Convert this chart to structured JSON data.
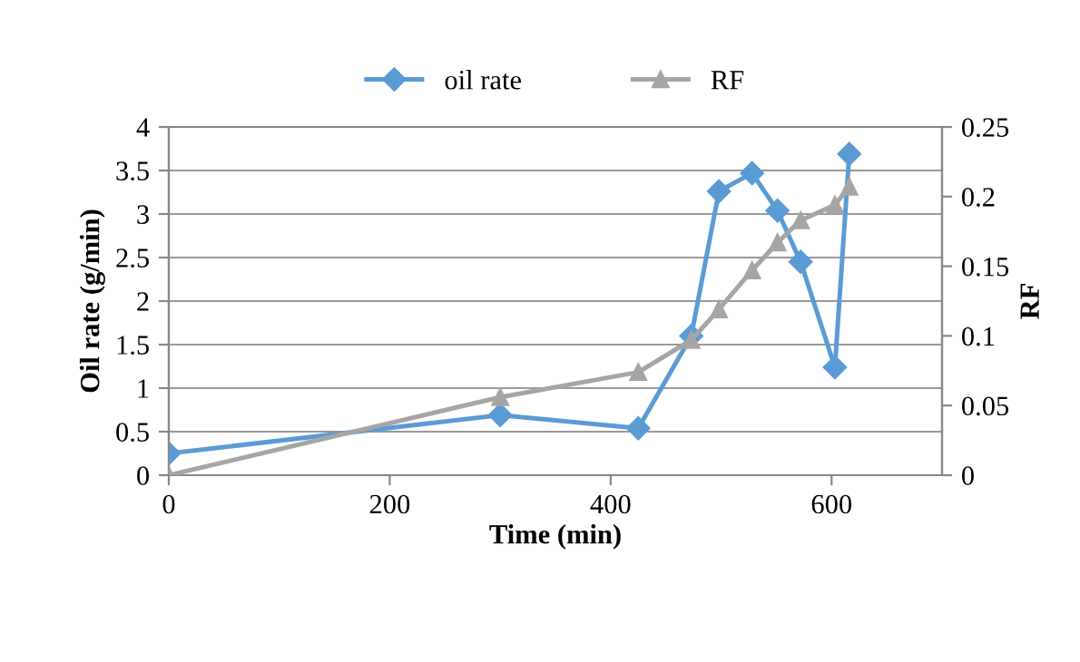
{
  "chart_data": {
    "type": "line",
    "xlabel": "Time (min)",
    "ylabel": "Oil rate (g/min)",
    "y2label": "RF",
    "series": [
      {
        "name": "oil rate",
        "color": "#5b9bd5",
        "marker": "diamond",
        "x": [
          0,
          300,
          425,
          473,
          498,
          528,
          551,
          572,
          603,
          616
        ],
        "values": [
          0.25,
          0.69,
          0.54,
          1.6,
          3.26,
          3.47,
          3.04,
          2.45,
          1.24,
          3.69
        ]
      },
      {
        "name": "RF",
        "color": "#a5a5a5",
        "marker": "triangle",
        "axis": "y2",
        "x": [
          0,
          300,
          425,
          473,
          498,
          528,
          551,
          572,
          603,
          616
        ],
        "values": [
          0,
          0.056,
          0.074,
          0.097,
          0.119,
          0.147,
          0.167,
          0.183,
          0.194,
          0.207
        ]
      }
    ],
    "xlim": [
      0,
      700
    ],
    "xticks": [
      0,
      200,
      400,
      600
    ],
    "ylim": [
      0,
      4
    ],
    "yticks": [
      0,
      0.5,
      1,
      1.5,
      2,
      2.5,
      3,
      3.5,
      4
    ],
    "y2lim": [
      0,
      0.25
    ],
    "y2ticks": [
      0,
      0.05,
      0.1,
      0.15,
      0.2,
      0.25
    ],
    "grid": "y",
    "legend": "top",
    "line_style": "solid"
  }
}
